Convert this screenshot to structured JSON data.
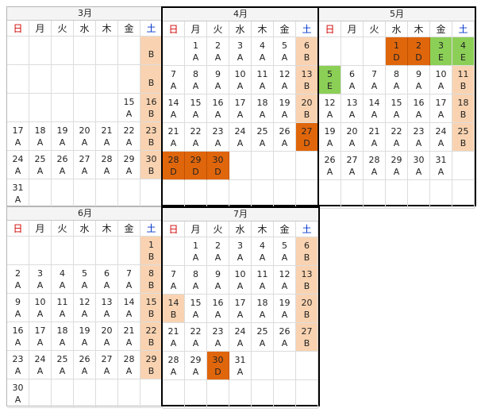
{
  "weekdays": [
    "日",
    "月",
    "火",
    "水",
    "木",
    "金",
    "土"
  ],
  "months": [
    {
      "title": "3月",
      "weeks": [
        [
          {
            "d": "",
            "s": ""
          },
          {
            "d": "",
            "s": ""
          },
          {
            "d": "",
            "s": ""
          },
          {
            "d": "",
            "s": ""
          },
          {
            "d": "",
            "s": ""
          },
          {
            "d": "",
            "s": ""
          },
          {
            "d": "",
            "s": "B"
          }
        ],
        [
          {
            "d": "",
            "s": ""
          },
          {
            "d": "",
            "s": ""
          },
          {
            "d": "",
            "s": ""
          },
          {
            "d": "",
            "s": ""
          },
          {
            "d": "",
            "s": ""
          },
          {
            "d": "",
            "s": ""
          },
          {
            "d": "",
            "s": "B"
          }
        ],
        [
          {
            "d": "",
            "s": ""
          },
          {
            "d": "",
            "s": ""
          },
          {
            "d": "",
            "s": ""
          },
          {
            "d": "",
            "s": ""
          },
          {
            "d": "",
            "s": ""
          },
          {
            "d": "15",
            "s": "A"
          },
          {
            "d": "16",
            "s": "B"
          }
        ],
        [
          {
            "d": "17",
            "s": "A"
          },
          {
            "d": "18",
            "s": "A"
          },
          {
            "d": "19",
            "s": "A"
          },
          {
            "d": "20",
            "s": "A"
          },
          {
            "d": "21",
            "s": "A"
          },
          {
            "d": "22",
            "s": "A"
          },
          {
            "d": "23",
            "s": "B"
          }
        ],
        [
          {
            "d": "24",
            "s": "A"
          },
          {
            "d": "25",
            "s": "A"
          },
          {
            "d": "26",
            "s": "A"
          },
          {
            "d": "27",
            "s": "A"
          },
          {
            "d": "28",
            "s": "A"
          },
          {
            "d": "29",
            "s": "A"
          },
          {
            "d": "30",
            "s": "B"
          }
        ],
        [
          {
            "d": "31",
            "s": "A"
          },
          {
            "d": "",
            "s": ""
          },
          {
            "d": "",
            "s": ""
          },
          {
            "d": "",
            "s": ""
          },
          {
            "d": "",
            "s": ""
          },
          {
            "d": "",
            "s": ""
          },
          {
            "d": "",
            "s": ""
          }
        ]
      ]
    },
    {
      "title": "4月",
      "weeks": [
        [
          {
            "d": "",
            "s": ""
          },
          {
            "d": "1",
            "s": "A"
          },
          {
            "d": "2",
            "s": "A"
          },
          {
            "d": "3",
            "s": "A"
          },
          {
            "d": "4",
            "s": "A"
          },
          {
            "d": "5",
            "s": "A"
          },
          {
            "d": "6",
            "s": "B"
          }
        ],
        [
          {
            "d": "7",
            "s": "A"
          },
          {
            "d": "8",
            "s": "A"
          },
          {
            "d": "9",
            "s": "A"
          },
          {
            "d": "10",
            "s": "A"
          },
          {
            "d": "11",
            "s": "A"
          },
          {
            "d": "12",
            "s": "A"
          },
          {
            "d": "13",
            "s": "B"
          }
        ],
        [
          {
            "d": "14",
            "s": "A"
          },
          {
            "d": "15",
            "s": "A"
          },
          {
            "d": "16",
            "s": "A"
          },
          {
            "d": "17",
            "s": "A"
          },
          {
            "d": "18",
            "s": "A"
          },
          {
            "d": "19",
            "s": "A"
          },
          {
            "d": "20",
            "s": "B"
          }
        ],
        [
          {
            "d": "21",
            "s": "A"
          },
          {
            "d": "22",
            "s": "A"
          },
          {
            "d": "23",
            "s": "A"
          },
          {
            "d": "24",
            "s": "A"
          },
          {
            "d": "25",
            "s": "A"
          },
          {
            "d": "26",
            "s": "A"
          },
          {
            "d": "27",
            "s": "D"
          }
        ],
        [
          {
            "d": "28",
            "s": "D"
          },
          {
            "d": "29",
            "s": "D"
          },
          {
            "d": "30",
            "s": "D"
          },
          {
            "d": "",
            "s": ""
          },
          {
            "d": "",
            "s": ""
          },
          {
            "d": "",
            "s": ""
          },
          {
            "d": "",
            "s": ""
          }
        ],
        [
          {
            "d": "",
            "s": ""
          },
          {
            "d": "",
            "s": ""
          },
          {
            "d": "",
            "s": ""
          },
          {
            "d": "",
            "s": ""
          },
          {
            "d": "",
            "s": ""
          },
          {
            "d": "",
            "s": ""
          },
          {
            "d": "",
            "s": ""
          }
        ]
      ]
    },
    {
      "title": "5月",
      "weeks": [
        [
          {
            "d": "",
            "s": ""
          },
          {
            "d": "",
            "s": ""
          },
          {
            "d": "",
            "s": ""
          },
          {
            "d": "1",
            "s": "D"
          },
          {
            "d": "2",
            "s": "D"
          },
          {
            "d": "3",
            "s": "E"
          },
          {
            "d": "4",
            "s": "E"
          }
        ],
        [
          {
            "d": "5",
            "s": "E"
          },
          {
            "d": "6",
            "s": "A"
          },
          {
            "d": "7",
            "s": "A"
          },
          {
            "d": "8",
            "s": "A"
          },
          {
            "d": "9",
            "s": "A"
          },
          {
            "d": "10",
            "s": "A"
          },
          {
            "d": "11",
            "s": "B"
          }
        ],
        [
          {
            "d": "12",
            "s": "A"
          },
          {
            "d": "13",
            "s": "A"
          },
          {
            "d": "14",
            "s": "A"
          },
          {
            "d": "15",
            "s": "A"
          },
          {
            "d": "16",
            "s": "A"
          },
          {
            "d": "17",
            "s": "A"
          },
          {
            "d": "18",
            "s": "B"
          }
        ],
        [
          {
            "d": "19",
            "s": "A"
          },
          {
            "d": "20",
            "s": "A"
          },
          {
            "d": "21",
            "s": "A"
          },
          {
            "d": "22",
            "s": "A"
          },
          {
            "d": "23",
            "s": "A"
          },
          {
            "d": "24",
            "s": "A"
          },
          {
            "d": "25",
            "s": "B"
          }
        ],
        [
          {
            "d": "26",
            "s": "A"
          },
          {
            "d": "27",
            "s": "A"
          },
          {
            "d": "28",
            "s": "A"
          },
          {
            "d": "29",
            "s": "A"
          },
          {
            "d": "30",
            "s": "A"
          },
          {
            "d": "31",
            "s": "A"
          },
          {
            "d": "",
            "s": ""
          }
        ],
        [
          {
            "d": "",
            "s": ""
          },
          {
            "d": "",
            "s": ""
          },
          {
            "d": "",
            "s": ""
          },
          {
            "d": "",
            "s": ""
          },
          {
            "d": "",
            "s": ""
          },
          {
            "d": "",
            "s": ""
          },
          {
            "d": "",
            "s": ""
          }
        ]
      ]
    },
    {
      "title": "6月",
      "weeks": [
        [
          {
            "d": "",
            "s": ""
          },
          {
            "d": "",
            "s": ""
          },
          {
            "d": "",
            "s": ""
          },
          {
            "d": "",
            "s": ""
          },
          {
            "d": "",
            "s": ""
          },
          {
            "d": "",
            "s": ""
          },
          {
            "d": "1",
            "s": "B"
          }
        ],
        [
          {
            "d": "2",
            "s": "A"
          },
          {
            "d": "3",
            "s": "A"
          },
          {
            "d": "4",
            "s": "A"
          },
          {
            "d": "5",
            "s": "A"
          },
          {
            "d": "6",
            "s": "A"
          },
          {
            "d": "7",
            "s": "A"
          },
          {
            "d": "8",
            "s": "B"
          }
        ],
        [
          {
            "d": "9",
            "s": "A"
          },
          {
            "d": "10",
            "s": "A"
          },
          {
            "d": "11",
            "s": "A"
          },
          {
            "d": "12",
            "s": "A"
          },
          {
            "d": "13",
            "s": "A"
          },
          {
            "d": "14",
            "s": "A"
          },
          {
            "d": "15",
            "s": "B"
          }
        ],
        [
          {
            "d": "16",
            "s": "A"
          },
          {
            "d": "17",
            "s": "A"
          },
          {
            "d": "18",
            "s": "A"
          },
          {
            "d": "19",
            "s": "A"
          },
          {
            "d": "20",
            "s": "A"
          },
          {
            "d": "21",
            "s": "A"
          },
          {
            "d": "22",
            "s": "B"
          }
        ],
        [
          {
            "d": "23",
            "s": "A"
          },
          {
            "d": "24",
            "s": "A"
          },
          {
            "d": "25",
            "s": "A"
          },
          {
            "d": "26",
            "s": "A"
          },
          {
            "d": "27",
            "s": "A"
          },
          {
            "d": "28",
            "s": "A"
          },
          {
            "d": "29",
            "s": "B"
          }
        ],
        [
          {
            "d": "30",
            "s": "A"
          },
          {
            "d": "",
            "s": ""
          },
          {
            "d": "",
            "s": ""
          },
          {
            "d": "",
            "s": ""
          },
          {
            "d": "",
            "s": ""
          },
          {
            "d": "",
            "s": ""
          },
          {
            "d": "",
            "s": ""
          }
        ]
      ]
    },
    {
      "title": "7月",
      "weeks": [
        [
          {
            "d": "",
            "s": ""
          },
          {
            "d": "1",
            "s": "A"
          },
          {
            "d": "2",
            "s": "A"
          },
          {
            "d": "3",
            "s": "A"
          },
          {
            "d": "4",
            "s": "A"
          },
          {
            "d": "5",
            "s": "A"
          },
          {
            "d": "6",
            "s": "B"
          }
        ],
        [
          {
            "d": "7",
            "s": "A"
          },
          {
            "d": "8",
            "s": "A"
          },
          {
            "d": "9",
            "s": "A"
          },
          {
            "d": "10",
            "s": "A"
          },
          {
            "d": "11",
            "s": "A"
          },
          {
            "d": "12",
            "s": "A"
          },
          {
            "d": "13",
            "s": "B"
          }
        ],
        [
          {
            "d": "14",
            "s": "B"
          },
          {
            "d": "15",
            "s": "A"
          },
          {
            "d": "16",
            "s": "A"
          },
          {
            "d": "17",
            "s": "A"
          },
          {
            "d": "18",
            "s": "A"
          },
          {
            "d": "19",
            "s": "A"
          },
          {
            "d": "20",
            "s": "B"
          }
        ],
        [
          {
            "d": "21",
            "s": "A"
          },
          {
            "d": "22",
            "s": "A"
          },
          {
            "d": "23",
            "s": "A"
          },
          {
            "d": "24",
            "s": "A"
          },
          {
            "d": "25",
            "s": "A"
          },
          {
            "d": "26",
            "s": "A"
          },
          {
            "d": "27",
            "s": "B"
          }
        ],
        [
          {
            "d": "28",
            "s": "A"
          },
          {
            "d": "29",
            "s": "A"
          },
          {
            "d": "30",
            "s": "D"
          },
          {
            "d": "31",
            "s": "A"
          },
          {
            "d": "",
            "s": ""
          },
          {
            "d": "",
            "s": ""
          },
          {
            "d": "",
            "s": ""
          }
        ],
        [
          {
            "d": "",
            "s": ""
          },
          {
            "d": "",
            "s": ""
          },
          {
            "d": "",
            "s": ""
          },
          {
            "d": "",
            "s": ""
          },
          {
            "d": "",
            "s": ""
          },
          {
            "d": "",
            "s": ""
          },
          {
            "d": "",
            "s": ""
          }
        ]
      ]
    }
  ]
}
